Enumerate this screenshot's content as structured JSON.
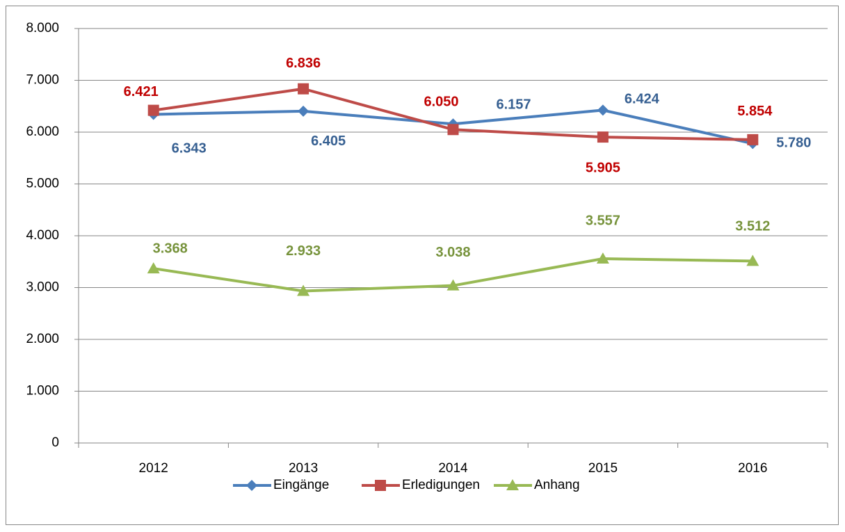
{
  "chart_data": {
    "type": "line",
    "categories": [
      "2012",
      "2013",
      "2014",
      "2015",
      "2016"
    ],
    "series": [
      {
        "name": "Eingänge",
        "color": "#4a7ebb",
        "label_color": "#376092",
        "marker": "diamond",
        "values": [
          6343,
          6405,
          6157,
          6424,
          5780
        ],
        "value_labels": [
          "6.343",
          "6.405",
          "6.157",
          "6.424",
          "5.780"
        ]
      },
      {
        "name": "Erledigungen",
        "color": "#be4b48",
        "label_color": "#c00000",
        "marker": "square",
        "values": [
          6421,
          6836,
          6050,
          5905,
          5854
        ],
        "value_labels": [
          "6.421",
          "6.836",
          "6.050",
          "5.905",
          "5.854"
        ]
      },
      {
        "name": "Anhang",
        "color": "#98b954",
        "label_color": "#77933c",
        "marker": "triangle",
        "values": [
          3368,
          2933,
          3038,
          3557,
          3512
        ],
        "value_labels": [
          "3.368",
          "2.933",
          "3.038",
          "3.557",
          "3.512"
        ]
      }
    ],
    "ylim": [
      0,
      8000
    ],
    "yticks": [
      0,
      {
        "value": 1000,
        "label": "1.000"
      },
      {
        "value": 2000,
        "label": "2.000"
      },
      {
        "value": 3000,
        "label": "3.000"
      },
      {
        "value": 4000,
        "label": "4.000"
      },
      {
        "value": 5000,
        "label": "5.000"
      },
      {
        "value": 6000,
        "label": "6.000"
      },
      {
        "value": 7000,
        "label": "7.000"
      },
      {
        "value": 8000,
        "label": "8.000"
      }
    ],
    "grid": true,
    "legend": "bottom"
  }
}
